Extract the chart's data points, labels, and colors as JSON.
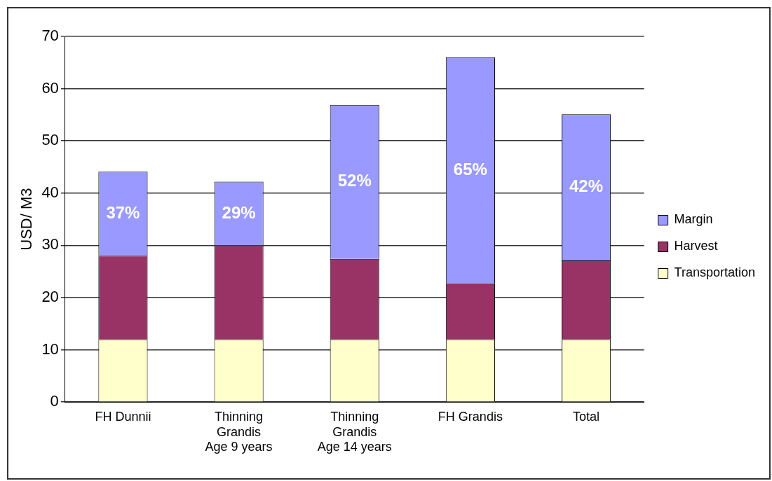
{
  "chart_data": {
    "type": "bar",
    "stacked": true,
    "ylabel": "USD/ M3",
    "categories": [
      "FH Dunnii",
      "Thinning\nGrandis\nAge 9 years",
      "Thinning\nGrandis\nAge 14 years",
      "FH Grandis",
      "Total"
    ],
    "series": [
      {
        "name": "Transportation",
        "color": "#ffffcc",
        "values": [
          12,
          12,
          12,
          12,
          12
        ]
      },
      {
        "name": "Harvest",
        "color": "#993366",
        "values": [
          16,
          18,
          15.4,
          10.7,
          15.1
        ]
      },
      {
        "name": "Margin",
        "color": "#9999ff",
        "values": [
          16.1,
          12.2,
          29.5,
          43.3,
          28
        ]
      }
    ],
    "annotations": [
      "37%",
      "29%",
      "52%",
      "65%",
      "42%"
    ],
    "ylim": [
      0,
      70
    ],
    "yticks": [
      0,
      10,
      20,
      30,
      40,
      50,
      60,
      70
    ],
    "grid": "y",
    "legend": "right"
  }
}
